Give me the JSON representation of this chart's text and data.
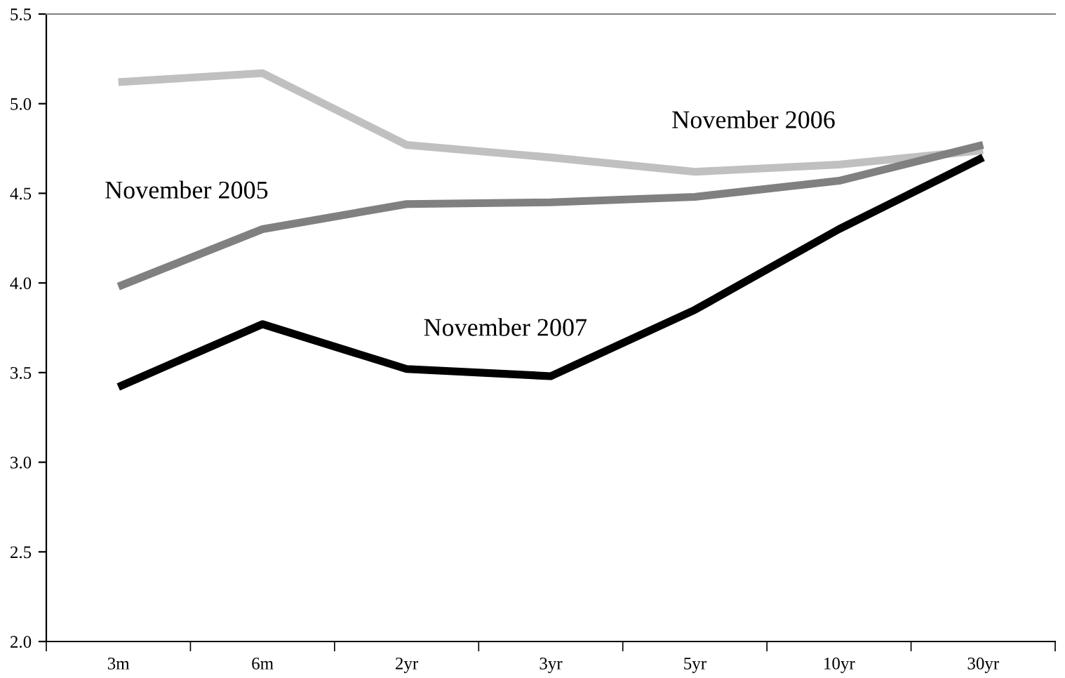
{
  "chart_data": {
    "type": "line",
    "categories": [
      "3m",
      "6m",
      "2yr",
      "3yr",
      "5yr",
      "10yr",
      "30yr"
    ],
    "series": [
      {
        "name": "November 2006",
        "color": "#c0c0c0",
        "values": [
          5.12,
          5.17,
          4.77,
          4.7,
          4.62,
          4.66,
          4.74
        ]
      },
      {
        "name": "November 2005",
        "color": "#808080",
        "values": [
          3.98,
          4.3,
          4.44,
          4.45,
          4.48,
          4.57,
          4.77
        ]
      },
      {
        "name": "November 2007",
        "color": "#000000",
        "values": [
          3.42,
          3.77,
          3.52,
          3.48,
          3.85,
          4.3,
          4.7
        ]
      }
    ],
    "ylim": [
      2.0,
      5.5
    ],
    "yticks": [
      {
        "value": 2.0,
        "label": "2.0"
      },
      {
        "value": 2.5,
        "label": "2.5"
      },
      {
        "value": 3.0,
        "label": "3.0"
      },
      {
        "value": 3.5,
        "label": "3.5"
      },
      {
        "value": 4.0,
        "label": "4.0"
      },
      {
        "value": 4.5,
        "label": "4.5"
      },
      {
        "value": 5.0,
        "label": "5.0"
      },
      {
        "value": 5.5,
        "label": "5.5"
      }
    ],
    "grid": false,
    "legend": false,
    "marker": "none",
    "line_style": "solid"
  }
}
